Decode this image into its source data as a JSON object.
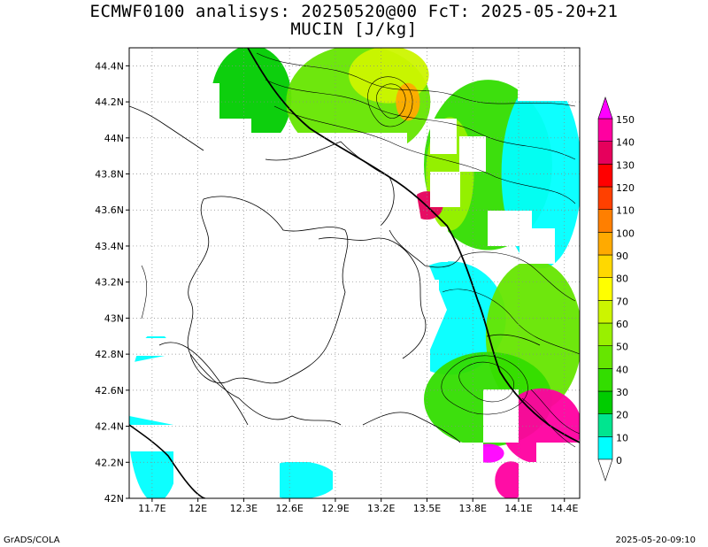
{
  "title": {
    "line1": "ECMWF0100 analisys: 20250520@00 FcT: 2025-05-20+21",
    "line2": "MUCIN [J/kg]"
  },
  "axes": {
    "lat_labels": [
      "44.4N",
      "44.2N",
      "44N",
      "43.8N",
      "43.6N",
      "43.4N",
      "43.2N",
      "43N",
      "42.8N",
      "42.6N",
      "42.4N",
      "42.2N",
      "42N"
    ],
    "lon_labels": [
      "11.7E",
      "12E",
      "12.3E",
      "12.6E",
      "12.9E",
      "13.2E",
      "13.5E",
      "13.8E",
      "14.1E",
      "14.4E"
    ]
  },
  "colorbar": {
    "levels": [
      "0",
      "10",
      "20",
      "30",
      "40",
      "50",
      "60",
      "70",
      "80",
      "90",
      "100",
      "110",
      "120",
      "130",
      "140",
      "150"
    ],
    "colors": [
      "#00ffff",
      "#00e58f",
      "#00cc00",
      "#33dd00",
      "#66e600",
      "#99f000",
      "#ccf500",
      "#ffff00",
      "#ffd800",
      "#ffaa00",
      "#ff7f00",
      "#ff4000",
      "#ff0000",
      "#e6005c",
      "#ff00a0",
      "#ff00ff"
    ]
  },
  "footer": {
    "left": "GrADS/COLA",
    "right": "2025-05-20-09:10"
  },
  "chart_data": {
    "type": "heatmap",
    "title": "MUCIN [J/kg]",
    "x_range": [
      11.55,
      14.5
    ],
    "y_range": [
      42.0,
      44.5
    ],
    "x_ticks": [
      11.7,
      12.0,
      12.3,
      12.6,
      12.9,
      13.2,
      13.5,
      13.8,
      14.1,
      14.4
    ],
    "y_ticks": [
      42.0,
      42.2,
      42.4,
      42.6,
      42.8,
      43.0,
      43.2,
      43.4,
      43.6,
      43.8,
      44.0,
      44.2,
      44.4
    ],
    "value_range": [
      0,
      150
    ],
    "grid": true,
    "legend": "right colorbar",
    "field_regions": [
      {
        "lon": [
          12.1,
          12.6
        ],
        "lat": [
          43.95,
          44.5
        ],
        "value": 25
      },
      {
        "lon": [
          12.6,
          13.5
        ],
        "lat": [
          43.9,
          44.5
        ],
        "value": 45
      },
      {
        "lon": [
          13.0,
          13.5
        ],
        "lat": [
          44.2,
          44.5
        ],
        "value": 60
      },
      {
        "lon": [
          13.5,
          14.3
        ],
        "lat": [
          43.4,
          44.3
        ],
        "value": 30
      },
      {
        "lon": [
          13.3,
          13.45
        ],
        "lat": [
          44.1,
          44.3
        ],
        "value": 95
      },
      {
        "lon": [
          13.5,
          13.8
        ],
        "lat": [
          43.5,
          44.1
        ],
        "value": 55
      },
      {
        "lon": [
          13.4,
          13.6
        ],
        "lat": [
          43.55,
          43.7
        ],
        "value": 130
      },
      {
        "lon": [
          14.0,
          14.5
        ],
        "lat": [
          43.3,
          44.3
        ],
        "value": 5
      },
      {
        "lon": [
          13.3,
          14.0
        ],
        "lat": [
          42.7,
          43.3
        ],
        "value": 3
      },
      {
        "lon": [
          13.9,
          14.5
        ],
        "lat": [
          42.5,
          43.3
        ],
        "value": 45
      },
      {
        "lon": [
          13.5,
          14.3
        ],
        "lat": [
          42.3,
          42.8
        ],
        "value": 30
      },
      {
        "lon": [
          14.0,
          14.5
        ],
        "lat": [
          42.2,
          42.6
        ],
        "value": 145
      },
      {
        "lon": [
          13.8,
          14.0
        ],
        "lat": [
          42.2,
          42.3
        ],
        "value": 150
      },
      {
        "lon": [
          13.95,
          14.15
        ],
        "lat": [
          42.0,
          42.2
        ],
        "value": 140
      },
      {
        "lon": [
          11.55,
          11.9
        ],
        "lat": [
          42.0,
          42.9
        ],
        "value": 2
      },
      {
        "lon": [
          12.4,
          12.9
        ],
        "lat": [
          42.0,
          42.2
        ],
        "value": 3
      }
    ]
  }
}
